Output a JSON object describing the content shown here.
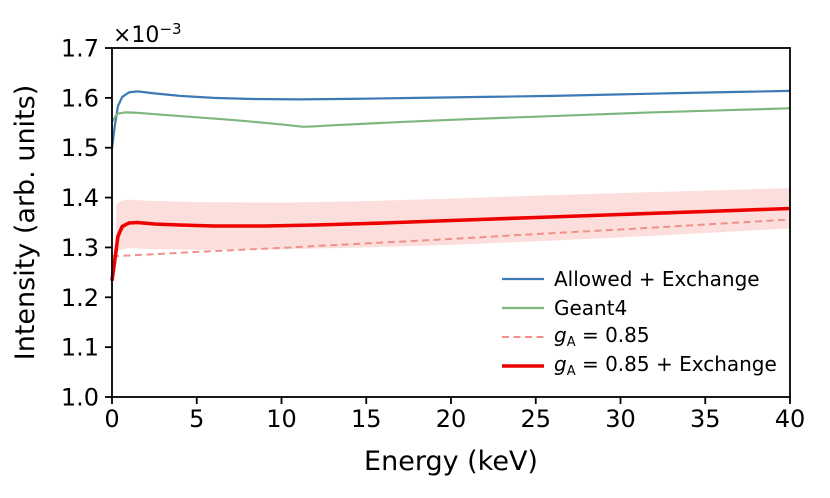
{
  "figure": {
    "background_color": "#ffffff",
    "text_color": "#000000"
  },
  "chart_data": {
    "type": "line",
    "title": "",
    "xlabel": "Energy (keV)",
    "ylabel": "Intensity (arb. units)",
    "y_offset_text": {
      "base": "×10",
      "exponent": "−3"
    },
    "y_scale_factor": "1e-3",
    "xlim": [
      0,
      40
    ],
    "ylim": [
      1.0,
      1.7
    ],
    "grid": false,
    "legend_position": "lower right",
    "xticks": {
      "values": [
        0,
        5,
        10,
        15,
        20,
        25,
        30,
        35,
        40
      ],
      "labels": [
        "0",
        "5",
        "10",
        "15",
        "20",
        "25",
        "30",
        "35",
        "40"
      ]
    },
    "yticks": {
      "values": [
        1.0,
        1.1,
        1.2,
        1.3,
        1.4,
        1.5,
        1.6,
        1.7
      ],
      "labels": [
        "1.0",
        "1.1",
        "1.2",
        "1.3",
        "1.4",
        "1.5",
        "1.6",
        "1.7"
      ]
    },
    "series": [
      {
        "name": "Allowed + Exchange",
        "color": "#3d79b4",
        "style": "solid",
        "width": 2.2,
        "x": [
          0,
          0.15,
          0.35,
          0.6,
          1,
          1.5,
          2.5,
          4,
          6,
          8,
          11,
          14,
          18,
          22,
          26,
          30,
          34,
          37,
          40
        ],
        "y": [
          1.498,
          1.54,
          1.583,
          1.602,
          1.611,
          1.613,
          1.609,
          1.604,
          1.6,
          1.598,
          1.597,
          1.598,
          1.6,
          1.602,
          1.604,
          1.607,
          1.61,
          1.612,
          1.614
        ]
      },
      {
        "name": "Geant4",
        "color": "#7eb77e",
        "style": "solid",
        "width": 2.2,
        "x": [
          0,
          0.3,
          0.8,
          1.5,
          3,
          5,
          7,
          9,
          10.5,
          11.3,
          12,
          13,
          16,
          20,
          24,
          28,
          32,
          36,
          40
        ],
        "y": [
          1.552,
          1.568,
          1.571,
          1.57,
          1.566,
          1.561,
          1.556,
          1.55,
          1.545,
          1.542,
          1.543,
          1.545,
          1.55,
          1.556,
          1.561,
          1.566,
          1.571,
          1.575,
          1.579
        ]
      },
      {
        "name": "gA = 0.85",
        "color": "#f1908a",
        "style": "dashed",
        "width": 2,
        "x": [
          0,
          5,
          10,
          15,
          20,
          25,
          30,
          35,
          40
        ],
        "y": [
          1.282,
          1.291,
          1.299,
          1.308,
          1.317,
          1.327,
          1.336,
          1.346,
          1.356
        ]
      },
      {
        "name": "gA = 0.85 + Exchange",
        "color": "#ee0000",
        "style": "solid",
        "width": 3.6,
        "x": [
          0,
          0.15,
          0.35,
          0.6,
          1,
          1.5,
          2.5,
          4,
          6,
          9,
          12,
          16,
          20,
          25,
          30,
          35,
          40
        ],
        "y": [
          1.233,
          1.27,
          1.322,
          1.342,
          1.349,
          1.35,
          1.347,
          1.345,
          1.343,
          1.343,
          1.345,
          1.349,
          1.354,
          1.36,
          1.366,
          1.372,
          1.378
        ]
      }
    ],
    "band": {
      "series": "gA = 0.85 + Exchange",
      "color": "#f6948c",
      "opacity": 0.3,
      "x": [
        0.25,
        0.6,
        1,
        2,
        5,
        10,
        15,
        20,
        25,
        30,
        35,
        40
      ],
      "top": [
        1.386,
        1.394,
        1.396,
        1.394,
        1.391,
        1.39,
        1.393,
        1.398,
        1.404,
        1.409,
        1.414,
        1.419
      ],
      "bottom": [
        1.29,
        1.296,
        1.299,
        1.297,
        1.295,
        1.296,
        1.3,
        1.305,
        1.312,
        1.32,
        1.329,
        1.338
      ]
    },
    "legend": {
      "items": [
        {
          "label": "Allowed + Exchange",
          "color": "#3d79b4",
          "dash": "solid",
          "width": 2.2
        },
        {
          "label": "Geant4",
          "color": "#7eb77e",
          "dash": "solid",
          "width": 2.2
        },
        {
          "math_symbol": "g",
          "math_subscript": "A",
          "label_suffix": " = 0.85",
          "color": "#f1908a",
          "dash": "dashed",
          "width": 2
        },
        {
          "math_symbol": "g",
          "math_subscript": "A",
          "label_suffix": " = 0.85 + Exchange",
          "color": "#ee0000",
          "dash": "solid",
          "width": 3.6
        }
      ]
    }
  }
}
